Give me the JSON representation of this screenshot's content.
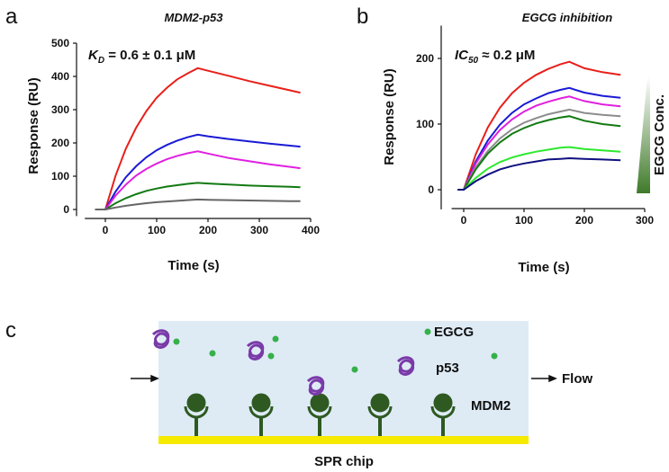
{
  "chart_data": [
    {
      "type": "line",
      "panel": "a",
      "title": "MDM2-p53",
      "x_label": "Time (s)",
      "y_label": "Response (RU)",
      "annotation": {
        "main": "K",
        "sub": "D",
        "rest": " = 0.6 ± 0.1 μM"
      },
      "x": [
        -20,
        0,
        20,
        40,
        60,
        80,
        100,
        120,
        140,
        160,
        180,
        200,
        240,
        280,
        320,
        360,
        380
      ],
      "series": [
        {
          "name": "red",
          "color": "#e8201a",
          "values": [
            0,
            0,
            102,
            183,
            246,
            296,
            336,
            366,
            391,
            409,
            425,
            417,
            402,
            386,
            372,
            358,
            351
          ]
        },
        {
          "name": "blue",
          "color": "#1a1ad6",
          "values": [
            0,
            0,
            54,
            97,
            130,
            157,
            178,
            194,
            207,
            217,
            225,
            220,
            212,
            205,
            198,
            192,
            189
          ]
        },
        {
          "name": "magenta",
          "color": "#e020e0",
          "values": [
            0,
            0,
            42,
            75,
            102,
            122,
            138,
            151,
            161,
            169,
            175,
            168,
            155,
            145,
            136,
            128,
            124
          ]
        },
        {
          "name": "green",
          "color": "#127a12",
          "values": [
            0,
            0,
            19,
            34,
            46,
            56,
            63,
            69,
            73,
            77,
            80,
            78,
            75,
            72,
            70,
            68,
            67
          ]
        },
        {
          "name": "gray",
          "color": "#666666",
          "values": [
            0,
            0,
            6,
            11,
            15,
            19,
            22,
            24,
            26,
            28,
            30,
            29,
            28,
            27,
            26,
            25,
            25
          ]
        }
      ],
      "xlim": [
        -40,
        400
      ],
      "xticks": [
        0,
        100,
        200,
        300,
        400
      ],
      "ylim": [
        -20,
        500
      ],
      "yticks": [
        0,
        100,
        200,
        300,
        400,
        500
      ]
    },
    {
      "type": "line",
      "panel": "b",
      "title": "EGCG inhibition",
      "x_label": "Time (s)",
      "y_label": "Response (RU)",
      "annotation": {
        "main": "IC",
        "sub": "50",
        "rest": " ≈ 0.2 μM"
      },
      "side_label": "EGCG Conc.",
      "x": [
        -10,
        0,
        20,
        40,
        60,
        80,
        100,
        120,
        140,
        160,
        175,
        200,
        230,
        260
      ],
      "series": [
        {
          "name": "red",
          "color": "#e8201a",
          "values": [
            0,
            0,
            54,
            95,
            125,
            147,
            163,
            175,
            184,
            191,
            195,
            185,
            179,
            175
          ]
        },
        {
          "name": "blue",
          "color": "#1a1ad6",
          "values": [
            0,
            0,
            43,
            75,
            99,
            117,
            130,
            139,
            147,
            152,
            155,
            148,
            143,
            140
          ]
        },
        {
          "name": "magenta",
          "color": "#e020e0",
          "values": [
            0,
            0,
            40,
            69,
            91,
            107,
            119,
            128,
            134,
            139,
            142,
            135,
            130,
            127
          ]
        },
        {
          "name": "gray",
          "color": "#8c8c8c",
          "values": [
            0,
            0,
            34,
            59,
            78,
            92,
            102,
            109,
            115,
            119,
            122,
            117,
            114,
            112
          ]
        },
        {
          "name": "dark green",
          "color": "#127a12",
          "values": [
            0,
            0,
            31,
            55,
            72,
            85,
            94,
            101,
            106,
            110,
            112,
            105,
            100,
            97
          ]
        },
        {
          "name": "light green",
          "color": "#2ee82e",
          "values": [
            0,
            0,
            18,
            32,
            42,
            49,
            54,
            58,
            61,
            64,
            65,
            62,
            60,
            58
          ]
        },
        {
          "name": "navy",
          "color": "#101080",
          "values": [
            0,
            0,
            13,
            23,
            31,
            36,
            40,
            43,
            46,
            47,
            48,
            47,
            46,
            45
          ]
        }
      ],
      "xlim": [
        -20,
        300
      ],
      "xticks": [
        0,
        100,
        200,
        300
      ],
      "ylim": [
        -30,
        250
      ],
      "yticks": [
        0,
        100,
        200
      ]
    }
  ],
  "diagram": {
    "panel": "c",
    "egcg": "EGCG",
    "p53": "p53",
    "mdm2": "MDM2",
    "flow": "Flow",
    "chip": "SPR chip"
  }
}
